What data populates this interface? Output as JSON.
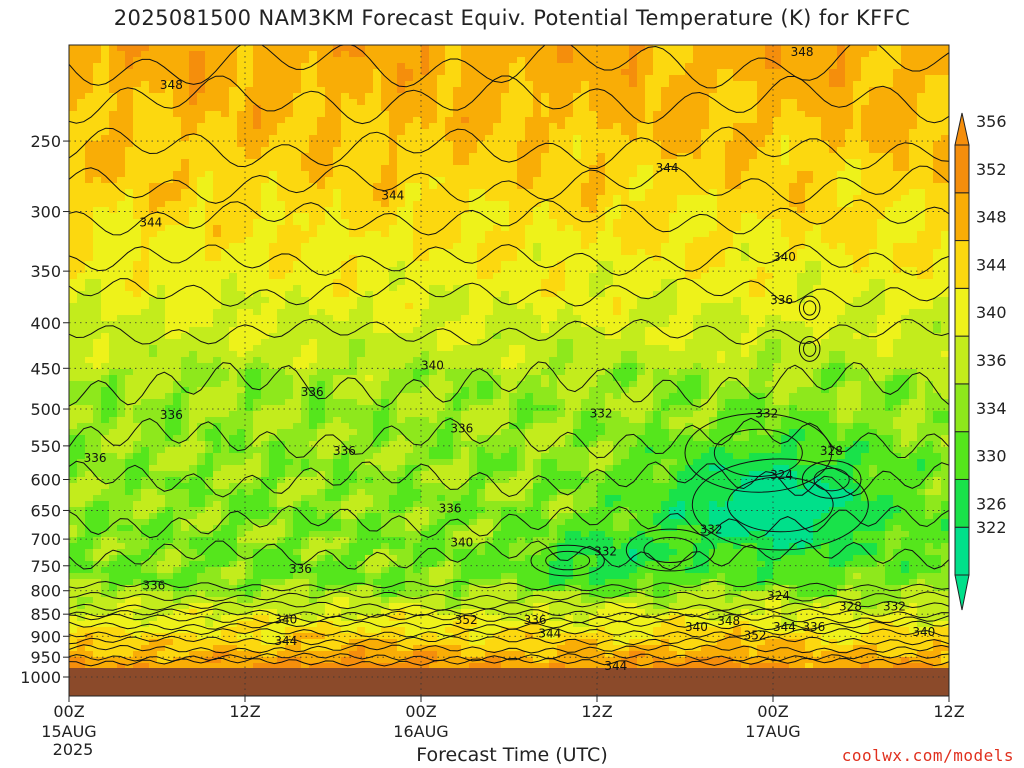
{
  "title": "2025081500 NAM3KM Forecast Equiv. Potential Temperature (K) for KFFC",
  "credit": "coolwx.com/models",
  "colors": {
    "ground": "#8b4a2a",
    "levels": [
      "#00e08a",
      "#19e24a",
      "#55e61c",
      "#8ee81c",
      "#c3ec1c",
      "#eef21a",
      "#fcd80f",
      "#f9ad06",
      "#f58e0c"
    ]
  },
  "chart_data": {
    "type": "heatmap",
    "title": "2025081500 NAM3KM Forecast Equiv. Potential Temperature (K) for KFFC",
    "xlabel": "Forecast Time (UTC)",
    "ylabel": "",
    "y_scale": "log-pressure",
    "y_ticks": [
      250,
      300,
      350,
      400,
      450,
      500,
      550,
      600,
      650,
      700,
      750,
      800,
      850,
      900,
      950,
      1000
    ],
    "x_ticks": [
      {
        "hour": 0,
        "label": "00Z",
        "sub": "15AUG",
        "sub2": "2025"
      },
      {
        "hour": 12,
        "label": "12Z",
        "sub": "",
        "sub2": ""
      },
      {
        "hour": 24,
        "label": "00Z",
        "sub": "16AUG",
        "sub2": ""
      },
      {
        "hour": 36,
        "label": "12Z",
        "sub": "",
        "sub2": ""
      },
      {
        "hour": 48,
        "label": "00Z",
        "sub": "17AUG",
        "sub2": ""
      },
      {
        "hour": 60,
        "label": "12Z",
        "sub": "",
        "sub2": ""
      }
    ],
    "colorbar_levels": [
      322,
      326,
      330,
      334,
      336,
      340,
      344,
      348,
      352,
      356
    ],
    "contour_labels": [
      {
        "value": "348",
        "hour": 6.2,
        "p": 218
      },
      {
        "value": "348",
        "hour": 49.2,
        "p": 200
      },
      {
        "value": "344",
        "hour": 4.8,
        "p": 311
      },
      {
        "value": "344",
        "hour": 21.3,
        "p": 290
      },
      {
        "value": "344",
        "hour": 40.0,
        "p": 270
      },
      {
        "value": "340",
        "hour": 48.0,
        "p": 340
      },
      {
        "value": "336",
        "hour": 47.8,
        "p": 380
      },
      {
        "value": "340",
        "hour": 24.0,
        "p": 450
      },
      {
        "value": "336",
        "hour": 15.8,
        "p": 482
      },
      {
        "value": "336",
        "hour": 6.2,
        "p": 512
      },
      {
        "value": "336",
        "hour": 1.0,
        "p": 572
      },
      {
        "value": "336",
        "hour": 18.0,
        "p": 562
      },
      {
        "value": "336",
        "hour": 26.0,
        "p": 530
      },
      {
        "value": "332",
        "hour": 35.5,
        "p": 510
      },
      {
        "value": "332",
        "hour": 46.8,
        "p": 510
      },
      {
        "value": "328",
        "hour": 51.2,
        "p": 562
      },
      {
        "value": "324",
        "hour": 47.8,
        "p": 598
      },
      {
        "value": "336",
        "hour": 25.2,
        "p": 652
      },
      {
        "value": "340",
        "hour": 26.0,
        "p": 712
      },
      {
        "value": "332",
        "hour": 43.0,
        "p": 688
      },
      {
        "value": "332",
        "hour": 35.8,
        "p": 728
      },
      {
        "value": "336",
        "hour": 15.0,
        "p": 762
      },
      {
        "value": "336",
        "hour": 5.0,
        "p": 795
      },
      {
        "value": "324",
        "hour": 47.6,
        "p": 817
      },
      {
        "value": "328",
        "hour": 52.5,
        "p": 840
      },
      {
        "value": "332",
        "hour": 55.5,
        "p": 840
      },
      {
        "value": "340",
        "hour": 14.0,
        "p": 868
      },
      {
        "value": "352",
        "hour": 26.3,
        "p": 870
      },
      {
        "value": "336",
        "hour": 31.0,
        "p": 870
      },
      {
        "value": "348",
        "hour": 44.2,
        "p": 872
      },
      {
        "value": "340",
        "hour": 42.0,
        "p": 885
      },
      {
        "value": "344",
        "hour": 48.0,
        "p": 885
      },
      {
        "value": "336",
        "hour": 50.0,
        "p": 885
      },
      {
        "value": "352",
        "hour": 46.0,
        "p": 905
      },
      {
        "value": "344",
        "hour": 32.0,
        "p": 900
      },
      {
        "value": "340",
        "hour": 57.5,
        "p": 897
      },
      {
        "value": "344",
        "hour": 14.0,
        "p": 918
      },
      {
        "value": "344",
        "hour": 36.5,
        "p": 980
      }
    ]
  }
}
